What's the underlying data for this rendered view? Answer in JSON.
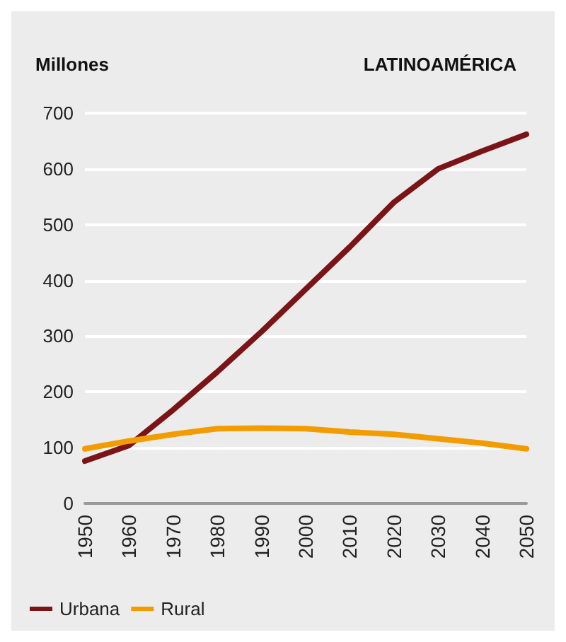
{
  "chart_data": {
    "type": "line",
    "title": "LATINOAMÉRICA",
    "ylabel": "Millones",
    "x": [
      1950,
      1960,
      1970,
      1980,
      1990,
      2000,
      2010,
      2020,
      2030,
      2040,
      2050
    ],
    "series": [
      {
        "name": "Urbana",
        "color": "#7b1416",
        "values": [
          76,
          104,
          168,
          236,
          308,
          384,
          460,
          540,
          600,
          632,
          662
        ]
      },
      {
        "name": "Rural",
        "color": "#f39c00",
        "values": [
          98,
          112,
          124,
          134,
          135,
          134,
          128,
          124,
          116,
          108,
          98
        ]
      }
    ],
    "xlim": [
      1950,
      2050
    ],
    "xticks": [
      1950,
      1960,
      1970,
      1980,
      1990,
      2000,
      2010,
      2020,
      2030,
      2040,
      2050
    ],
    "ylim": [
      0,
      700
    ],
    "yticks": [
      0,
      100,
      200,
      300,
      400,
      500,
      600,
      700
    ],
    "grid": "y",
    "legend": "bottom left",
    "marker": "none",
    "line_style": "solid"
  }
}
